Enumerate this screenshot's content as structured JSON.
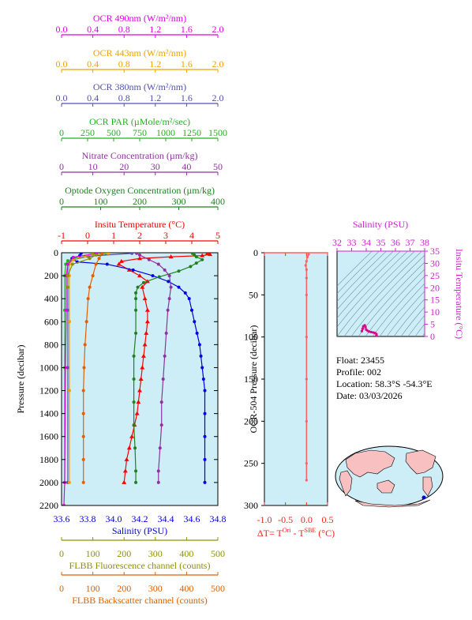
{
  "colors": {
    "ocr490": "#e000e0",
    "ocr443": "#f0a000",
    "ocr380": "#5050b0",
    "par": "#20b020",
    "nitrate": "#9030a0",
    "oxygen": "#208020",
    "temperature": "#ff0000",
    "salinity": "#0000e0",
    "fluorescence": "#909000",
    "backscatter": "#e06000",
    "plot_bg": "#cdeef6",
    "dT_line": "#ff6060",
    "ts_axis": "#d020d0",
    "ts_trace": "#e00090",
    "land": "#f8c0c0",
    "ocean": "#cdeef6",
    "float_marker": "#0000e0"
  },
  "main_axes": {
    "y_label": "Pressure (decibar)",
    "y_ticks": [
      "0",
      "200",
      "400",
      "600",
      "800",
      "1000",
      "1200",
      "1400",
      "1600",
      "1800",
      "2000",
      "2200"
    ],
    "top_axes": [
      {
        "key": "ocr490",
        "label": "OCR 490nm (W/m²/nm)",
        "ticks": [
          "0.0",
          "0.4",
          "0.8",
          "1.2",
          "1.6",
          "2.0"
        ]
      },
      {
        "key": "ocr443",
        "label": "OCR 443nm (W/m²/nm)",
        "ticks": [
          "0.0",
          "0.4",
          "0.8",
          "1.2",
          "1.6",
          "2.0"
        ]
      },
      {
        "key": "ocr380",
        "label": "OCR 380nm (W/m²/nm)",
        "ticks": [
          "0.0",
          "0.4",
          "0.8",
          "1.2",
          "1.6",
          "2.0"
        ]
      },
      {
        "key": "par",
        "label": "OCR PAR (µMole/m²/sec)",
        "ticks": [
          "0",
          "250",
          "500",
          "750",
          "1000",
          "1250",
          "1500"
        ]
      },
      {
        "key": "nitrate",
        "label": "Nitrate Concentration (µm/kg)",
        "ticks": [
          "0",
          "10",
          "20",
          "30",
          "40",
          "50"
        ]
      },
      {
        "key": "oxygen",
        "label": "Optode Oxygen Concentration (µm/kg)",
        "ticks": [
          "0",
          "100",
          "200",
          "300",
          "400"
        ]
      },
      {
        "key": "temperature",
        "label": "Insitu Temperature (°C)",
        "ticks": [
          "-1",
          "0",
          "1",
          "2",
          "3",
          "4",
          "5"
        ]
      }
    ],
    "bottom_axes": [
      {
        "key": "salinity",
        "label": "Salinity (PSU)",
        "ticks": [
          "33.6",
          "33.8",
          "34.0",
          "34.2",
          "34.4",
          "34.6",
          "34.8"
        ]
      },
      {
        "key": "fluorescence",
        "label": "FLBB Fluorescence channel (counts)",
        "ticks": [
          "0",
          "100",
          "200",
          "300",
          "400",
          "500"
        ]
      },
      {
        "key": "backscatter",
        "label": "FLBB Backscatter channel (counts)",
        "ticks": [
          "0",
          "100",
          "200",
          "300",
          "400",
          "500"
        ]
      }
    ]
  },
  "chart_data": [
    {
      "type": "line",
      "title": "",
      "ylabel": "Pressure (decibar)",
      "ylim": [
        2200,
        0
      ],
      "series": [
        {
          "name": "Insitu Temperature (°C)",
          "key": "temperature",
          "xlim": [
            -1,
            5
          ],
          "points": [
            [
              4.6,
              5
            ],
            [
              4.7,
              15
            ],
            [
              4.4,
              25
            ],
            [
              3.2,
              35
            ],
            [
              2.0,
              50
            ],
            [
              1.3,
              75
            ],
            [
              1.2,
              100
            ],
            [
              1.6,
              150
            ],
            [
              2.0,
              200
            ],
            [
              2.3,
              250
            ],
            [
              2.1,
              300
            ],
            [
              2.2,
              400
            ],
            [
              2.3,
              500
            ],
            [
              2.3,
              600
            ],
            [
              2.25,
              700
            ],
            [
              2.2,
              800
            ],
            [
              2.15,
              900
            ],
            [
              2.1,
              1000
            ],
            [
              2.05,
              1100
            ],
            [
              2.0,
              1200
            ],
            [
              1.95,
              1300
            ],
            [
              1.9,
              1400
            ],
            [
              1.8,
              1500
            ],
            [
              1.7,
              1600
            ],
            [
              1.6,
              1700
            ],
            [
              1.5,
              1800
            ],
            [
              1.45,
              1900
            ],
            [
              1.4,
              2000
            ]
          ]
        },
        {
          "name": "Salinity (PSU)",
          "key": "salinity",
          "xlim": [
            33.6,
            34.8
          ],
          "points": [
            [
              33.75,
              5
            ],
            [
              33.74,
              25
            ],
            [
              33.68,
              50
            ],
            [
              33.72,
              80
            ],
            [
              33.95,
              100
            ],
            [
              34.15,
              150
            ],
            [
              34.3,
              200
            ],
            [
              34.42,
              250
            ],
            [
              34.5,
              300
            ],
            [
              34.55,
              350
            ],
            [
              34.58,
              400
            ],
            [
              34.6,
              500
            ],
            [
              34.62,
              600
            ],
            [
              34.64,
              700
            ],
            [
              34.66,
              800
            ],
            [
              34.67,
              900
            ],
            [
              34.68,
              1000
            ],
            [
              34.69,
              1100
            ],
            [
              34.7,
              1200
            ],
            [
              34.7,
              1400
            ],
            [
              34.7,
              1600
            ],
            [
              34.7,
              1800
            ],
            [
              34.7,
              2000
            ]
          ]
        },
        {
          "name": "Optode Oxygen Concentration (µm/kg)",
          "key": "oxygen",
          "xlim": [
            0,
            400
          ],
          "points": [
            [
              335,
              5
            ],
            [
              340,
              20
            ],
            [
              345,
              35
            ],
            [
              360,
              60
            ],
            [
              345,
              90
            ],
            [
              330,
              120
            ],
            [
              300,
              160
            ],
            [
              250,
              210
            ],
            [
              210,
              260
            ],
            [
              195,
              300
            ],
            [
              190,
              350
            ],
            [
              190,
              400
            ],
            [
              190,
              500
            ],
            [
              190,
              700
            ],
            [
              185,
              900
            ],
            [
              185,
              1100
            ],
            [
              185,
              1300
            ],
            [
              185,
              1500
            ],
            [
              188,
              1700
            ],
            [
              190,
              1900
            ],
            [
              190,
              2000
            ]
          ]
        },
        {
          "name": "Nitrate Concentration (µm/kg)",
          "key": "nitrate",
          "xlim": [
            0,
            50
          ],
          "points": [
            [
              24,
              5
            ],
            [
              25,
              20
            ],
            [
              28,
              60
            ],
            [
              31,
              100
            ],
            [
              33,
              150
            ],
            [
              34.5,
              200
            ],
            [
              35,
              300
            ],
            [
              34.5,
              400
            ],
            [
              34,
              500
            ],
            [
              33.5,
              700
            ],
            [
              33,
              900
            ],
            [
              32.5,
              1100
            ],
            [
              32,
              1300
            ],
            [
              32,
              1500
            ],
            [
              31.5,
              1700
            ],
            [
              31,
              1900
            ],
            [
              31,
              2000
            ]
          ]
        },
        {
          "name": "OCR PAR (µMole/m²/sec)",
          "key": "par",
          "xlim": [
            0,
            1500
          ],
          "points": [
            [
              420,
              5
            ],
            [
              380,
              15
            ],
            [
              250,
              30
            ],
            [
              120,
              50
            ],
            [
              60,
              70
            ],
            [
              40,
              100
            ],
            [
              30,
              200
            ],
            [
              30,
              500
            ],
            [
              30,
              1000
            ],
            [
              30,
              2000
            ]
          ]
        },
        {
          "name": "OCR 380nm (W/m²/nm)",
          "key": "ocr380",
          "xlim": [
            0,
            2
          ],
          "points": [
            [
              0.9,
              5
            ],
            [
              0.35,
              30
            ],
            [
              0.15,
              60
            ],
            [
              0.08,
              100
            ],
            [
              0.08,
              200
            ],
            [
              0.08,
              500
            ],
            [
              0.08,
              1000
            ],
            [
              0.08,
              2000
            ]
          ]
        },
        {
          "name": "OCR 443nm (W/m²/nm)",
          "key": "ocr443",
          "xlim": [
            0,
            2
          ],
          "points": [
            [
              0.6,
              5
            ],
            [
              0.3,
              30
            ],
            [
              0.15,
              60
            ],
            [
              0.1,
              100
            ],
            [
              0.1,
              200
            ],
            [
              0.1,
              600
            ],
            [
              0.1,
              1200
            ],
            [
              0.1,
              2000
            ]
          ]
        },
        {
          "name": "OCR 490nm (W/m²/nm)",
          "key": "ocr490",
          "xlim": [
            0,
            2
          ],
          "points": [
            [
              0.45,
              5
            ],
            [
              0.15,
              40
            ],
            [
              0.08,
              100
            ],
            [
              0.06,
              200
            ],
            [
              0.06,
              500
            ],
            [
              0.05,
              1000
            ],
            [
              0.04,
              2000
            ],
            [
              0.03,
              2200
            ]
          ]
        },
        {
          "name": "FLBB Fluorescence channel (counts)",
          "key": "fluorescence",
          "xlim": [
            0,
            500
          ],
          "points": [
            [
              100,
              5
            ],
            [
              110,
              20
            ],
            [
              90,
              50
            ],
            [
              35,
              100
            ],
            [
              20,
              200
            ],
            [
              20,
              300
            ]
          ]
        },
        {
          "name": "FLBB Backscatter channel (counts)",
          "key": "backscatter",
          "xlim": [
            0,
            500
          ],
          "points": [
            [
              130,
              5
            ],
            [
              120,
              50
            ],
            [
              110,
              100
            ],
            [
              100,
              200
            ],
            [
              90,
              300
            ],
            [
              85,
              400
            ],
            [
              80,
              600
            ],
            [
              75,
              800
            ],
            [
              72,
              1000
            ],
            [
              70,
              1200
            ],
            [
              70,
              1400
            ],
            [
              70,
              1600
            ],
            [
              70,
              1800
            ],
            [
              70,
              2000
            ]
          ]
        }
      ]
    },
    {
      "type": "line",
      "title": "",
      "ylabel": "OCR-504 Pressure (decibar)",
      "xlabel": "ΔT= T",
      "xlabel_sup1": "Ori",
      "xlabel_mid": " - T",
      "xlabel_sup2": "SBE",
      "xlabel_unit": " (°C)",
      "xlim": [
        -1.0,
        0.5
      ],
      "ylim": [
        300,
        0
      ],
      "x_ticks": [
        "-1.0",
        "-0.5",
        "0.0",
        "0.5"
      ],
      "y_ticks": [
        "0",
        "50",
        "100",
        "150",
        "200",
        "250",
        "300"
      ],
      "series": [
        {
          "name": "ΔT",
          "points": [
            [
              0.05,
              2
            ],
            [
              0.02,
              5
            ],
            [
              0.0,
              10
            ],
            [
              -0.02,
              15
            ],
            [
              0.0,
              20
            ],
            [
              0.0,
              30
            ],
            [
              0.0,
              50
            ],
            [
              0.0,
              100
            ],
            [
              0.0,
              150
            ],
            [
              0.0,
              200
            ],
            [
              0.0,
              250
            ],
            [
              0.0,
              270
            ]
          ]
        }
      ]
    },
    {
      "type": "scatter",
      "title": "",
      "xlabel": "Salinity (PSU)",
      "ylabel": "Insitu Temperature (°C)",
      "xlim": [
        32,
        38
      ],
      "ylim": [
        0,
        35
      ],
      "x_ticks": [
        "32",
        "33",
        "34",
        "35",
        "36",
        "37",
        "38"
      ],
      "y_ticks": [
        "0",
        "5",
        "10",
        "15",
        "20",
        "25",
        "30",
        "35"
      ],
      "series": [
        {
          "name": "T-S",
          "points": [
            [
              33.7,
              2.2
            ],
            [
              33.75,
              3.2
            ],
            [
              33.8,
              4.2
            ],
            [
              33.9,
              4.6
            ],
            [
              33.95,
              3.8
            ],
            [
              34.0,
              2.8
            ],
            [
              34.1,
              2.3
            ],
            [
              34.2,
              2.0
            ],
            [
              34.35,
              1.8
            ],
            [
              34.5,
              1.6
            ],
            [
              34.6,
              1.4
            ],
            [
              34.7,
              1.0
            ],
            [
              34.7,
              0.4
            ]
          ]
        }
      ]
    }
  ],
  "float_info": {
    "float_line": "Float:  23455",
    "profile_line": "Profile:  002",
    "location_line": "Location:  58.3°S  -54.3°E",
    "date_line": "Date:  03/03/2026"
  }
}
